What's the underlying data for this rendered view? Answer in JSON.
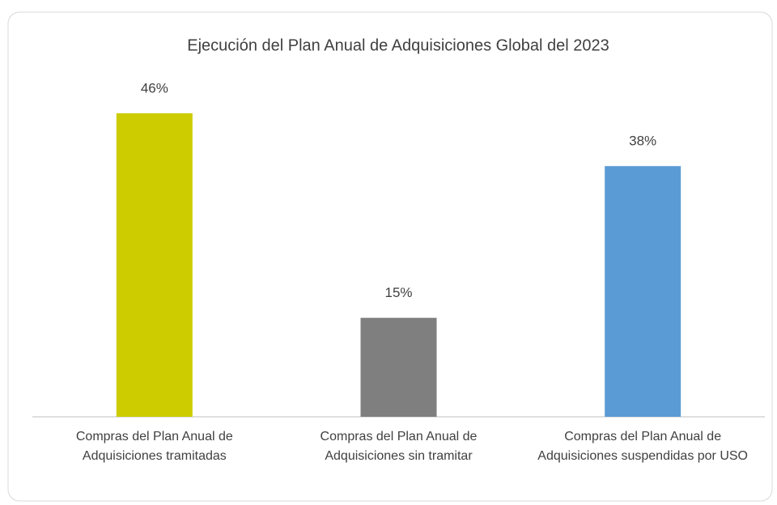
{
  "chart_data": {
    "type": "bar",
    "title": "Ejecución del Plan Anual de Adquisiciones Global del 2023",
    "categories": [
      "Compras del Plan Anual de Adquisiciones tramitadas",
      "Compras del Plan Anual de Adquisiciones sin tramitar",
      "Compras del Plan Anual de Adquisiciones suspendidas por USO"
    ],
    "values": [
      46,
      15,
      38
    ],
    "value_labels": [
      "46%",
      "15%",
      "38%"
    ],
    "colors": [
      "#cccc00",
      "#7f7f7f",
      "#5b9bd5"
    ]
  }
}
